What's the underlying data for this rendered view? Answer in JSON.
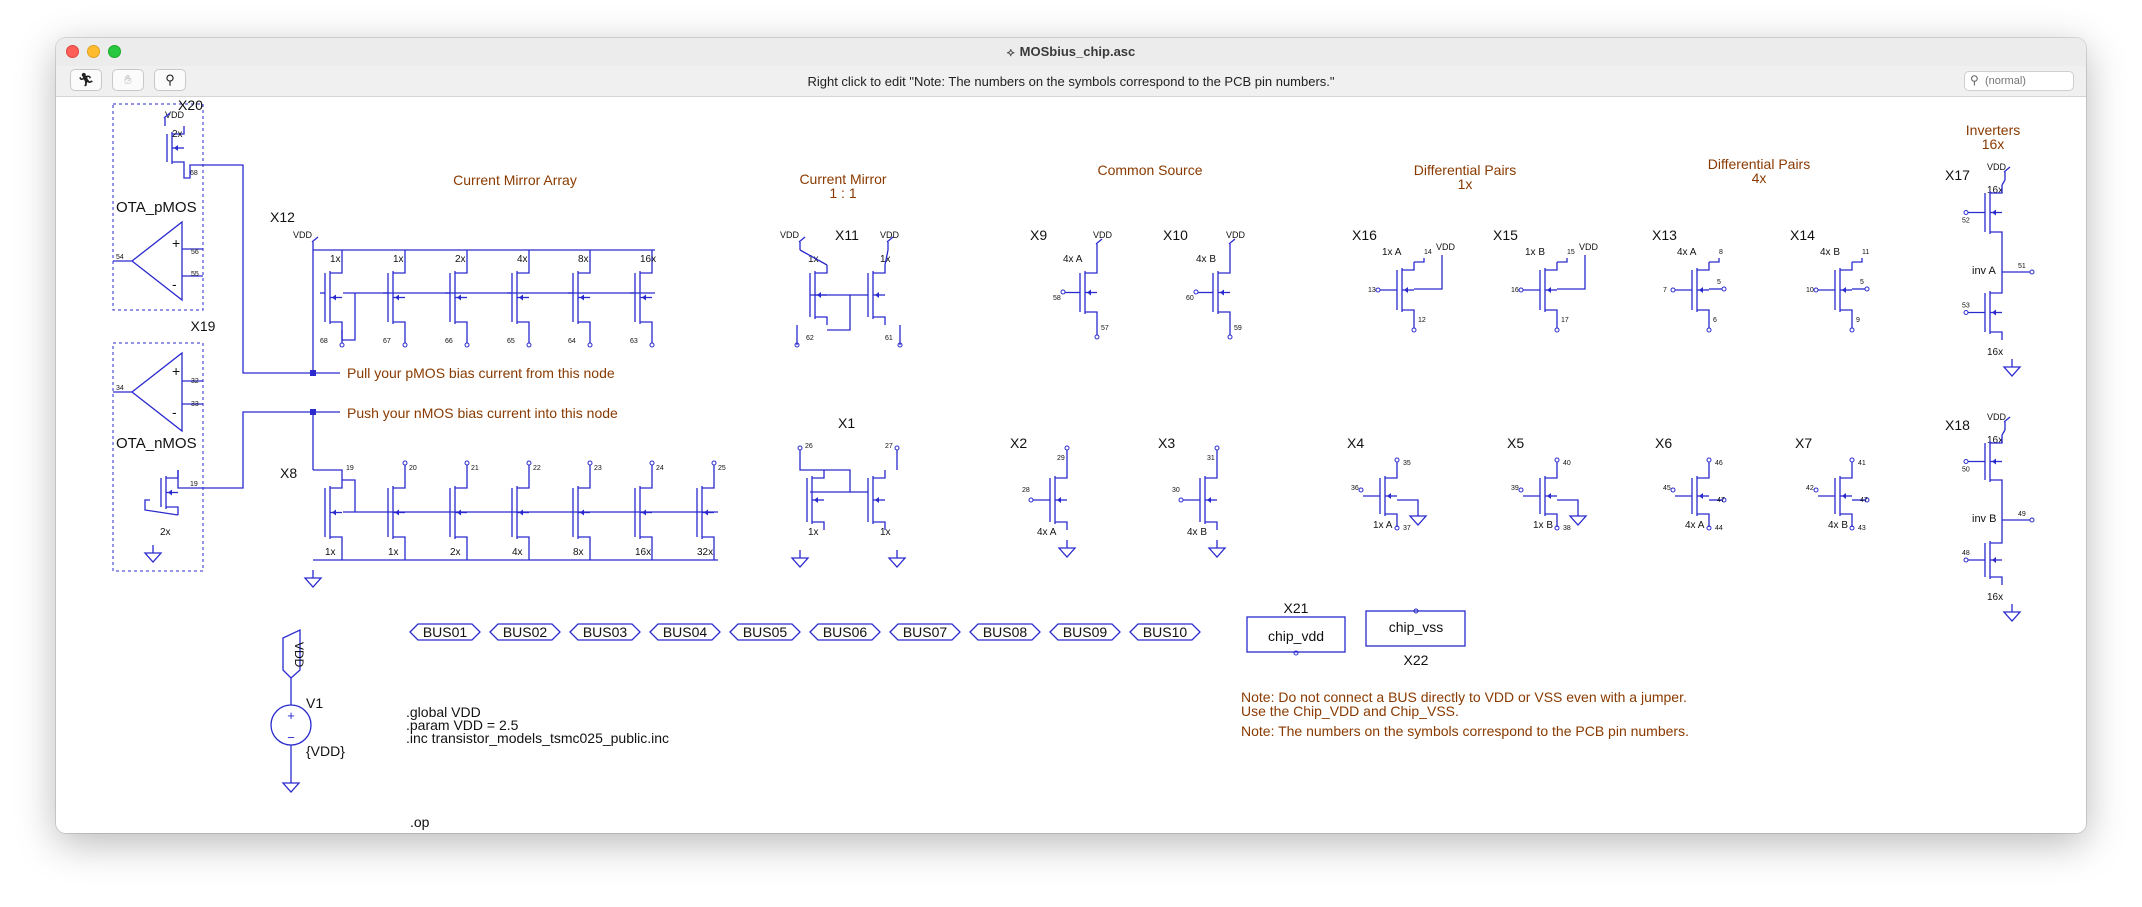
{
  "window": {
    "title": "MOSbius_chip.asc",
    "status_text": "Right click to edit \"Note: The numbers on the symbols correspond to the PCB pin numbers.\"",
    "search_placeholder": "(normal)"
  },
  "toolbar": {
    "run_icon": "running-man-icon",
    "halt_icon": "hand-icon",
    "probe_icon": "probe-icon"
  },
  "colors": {
    "wire": "#2a2acf",
    "comment": "#8a3a00",
    "text": "#111111"
  },
  "schematic": {
    "headings": {
      "current_mirror_array": "Current Mirror Array",
      "current_mirror": "Current Mirror",
      "current_mirror_ratio": "1 : 1",
      "common_source": "Common Source",
      "diff_pairs_1x": "Differential Pairs",
      "diff_pairs_1x_sub": "1x",
      "diff_pairs_4x": "Differential Pairs",
      "diff_pairs_4x_sub": "4x",
      "inverters": "Inverters",
      "inverters_sub": "16x"
    },
    "annotations": {
      "pmos_bias": "Pull your pMOS bias current from this node",
      "nmos_bias": "Push your nMOS bias current into this node",
      "note_bus": "Note: Do not connect a BUS directly to VDD or VSS even with a jumper.",
      "note_bus2": "Use the Chip_VDD and Chip_VSS.",
      "note_pins": "Note: The numbers on the symbols correspond to the PCB pin numbers."
    },
    "directives": {
      "global": ".global VDD",
      "param": ".param VDD = 2.5",
      "inc": ".inc transistor_models_tsmc025_public.inc",
      "op": ".op"
    },
    "source": {
      "name": "V1",
      "value": "{VDD}",
      "net": "VDD"
    },
    "blocks": {
      "chip_vdd": {
        "ref": "X21",
        "label": "chip_vdd"
      },
      "chip_vss": {
        "ref": "X22",
        "label": "chip_vss"
      }
    },
    "ota": {
      "pmos": {
        "ref": "X20",
        "label": "OTA_pMOS",
        "vdd": "VDD",
        "size": "2x",
        "pins": {
          "out": "68",
          "in": "54",
          "plus": "56",
          "minus": "55"
        }
      },
      "nmos": {
        "ref": "X19",
        "label": "OTA_nMOS",
        "size": "2x",
        "pins": {
          "out": "19",
          "in": "34",
          "plus": "32",
          "minus": "33"
        }
      }
    },
    "buses": [
      "BUS01",
      "BUS02",
      "BUS03",
      "BUS04",
      "BUS05",
      "BUS06",
      "BUS07",
      "BUS08",
      "BUS09",
      "BUS10"
    ],
    "pmos_array": {
      "ref": "X12",
      "vdd": "VDD",
      "sizes": [
        "1x",
        "1x",
        "2x",
        "4x",
        "8x",
        "16x"
      ],
      "pins": [
        "68",
        "67",
        "66",
        "65",
        "64",
        "63"
      ]
    },
    "nmos_array": {
      "ref": "X8",
      "sizes": [
        "1x",
        "1x",
        "2x",
        "4x",
        "8x",
        "16x",
        "32x"
      ],
      "pins": [
        "19",
        "20",
        "21",
        "22",
        "23",
        "24",
        "25"
      ]
    },
    "mirror_p": {
      "ref": "X11",
      "vdd": "VDD",
      "sizes": [
        "1x",
        "1x"
      ],
      "pins": [
        "62",
        "61"
      ]
    },
    "mirror_n": {
      "ref": "X1",
      "sizes": [
        "1x",
        "1x"
      ],
      "pins": [
        "26",
        "27"
      ]
    },
    "cs_p": [
      {
        "ref": "X9",
        "size": "4x A",
        "vdd": "VDD",
        "gate": "58",
        "drain": "57"
      },
      {
        "ref": "X10",
        "size": "4x B",
        "vdd": "VDD",
        "gate": "60",
        "drain": "59"
      }
    ],
    "cs_n": [
      {
        "ref": "X2",
        "size": "4x A",
        "gate": "28",
        "drain": "29"
      },
      {
        "ref": "X3",
        "size": "4x B",
        "gate": "30",
        "drain": "31"
      }
    ],
    "dp_p": [
      {
        "ref": "X16",
        "size": "1x A",
        "vdd": "VDD",
        "gate": "13",
        "drain": "12",
        "src": "14"
      },
      {
        "ref": "X15",
        "size": "1x B",
        "vdd": "VDD",
        "gate": "16",
        "drain": "17",
        "src": "15"
      },
      {
        "ref": "X13",
        "size": "4x A",
        "gate": "7",
        "drain": "6",
        "src": "8",
        "body": "5"
      },
      {
        "ref": "X14",
        "size": "4x B",
        "gate": "10",
        "drain": "9",
        "src": "11",
        "body": "5"
      }
    ],
    "dp_n": [
      {
        "ref": "X4",
        "size": "1x A",
        "gate": "36",
        "drain": "35",
        "src": "37"
      },
      {
        "ref": "X5",
        "size": "1x B",
        "gate": "39",
        "drain": "40",
        "src": "38"
      },
      {
        "ref": "X6",
        "size": "4x A",
        "gate": "45",
        "drain": "46",
        "src": "44",
        "body": "47"
      },
      {
        "ref": "X7",
        "size": "4x B",
        "gate": "42",
        "drain": "41",
        "src": "43",
        "body": "47"
      }
    ],
    "inverters": [
      {
        "ref": "X17",
        "label": "inv A",
        "vdd": "VDD",
        "size_p": "16x",
        "size_n": "16x",
        "pin_pg": "52",
        "pin_out": "51",
        "pin_ng": "53"
      },
      {
        "ref": "X18",
        "label": "inv B",
        "vdd": "VDD",
        "size_p": "16x",
        "size_n": "16x",
        "pin_pg": "50",
        "pin_out": "49",
        "pin_ng": "48"
      }
    ]
  }
}
